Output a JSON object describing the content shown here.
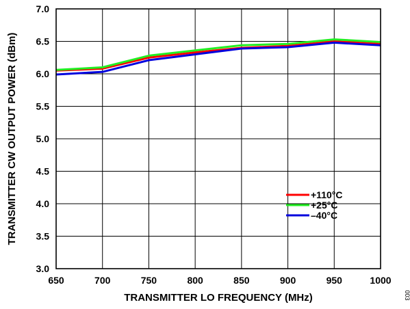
{
  "chart_data": {
    "type": "line",
    "title": "",
    "xlabel": "TRANSMITTER LO FREQUENCY (MHz)",
    "ylabel": "TRANSMITTER CW OUTPUT POWER (dBm)",
    "x": [
      650,
      700,
      750,
      800,
      850,
      900,
      950,
      1000
    ],
    "xlim": [
      650,
      1000
    ],
    "ylim": [
      3.0,
      7.0
    ],
    "x_ticks": [
      650,
      700,
      750,
      800,
      850,
      900,
      950,
      1000
    ],
    "y_ticks": [
      3.0,
      3.5,
      4.0,
      4.5,
      5.0,
      5.5,
      6.0,
      6.5,
      7.0
    ],
    "x_tick_labels": [
      "650",
      "700",
      "750",
      "800",
      "850",
      "900",
      "950",
      "1000"
    ],
    "y_tick_labels": [
      "3.0",
      "3.5",
      "4.0",
      "4.5",
      "5.0",
      "5.5",
      "6.0",
      "6.5",
      "7.0"
    ],
    "grid": true,
    "legend_position": "lower-right",
    "series": [
      {
        "name": "+110°C",
        "color": "#ff0000",
        "values": [
          6.05,
          6.08,
          6.25,
          6.33,
          6.4,
          6.43,
          6.5,
          6.46
        ]
      },
      {
        "name": "+25°C",
        "color": "#22ee22",
        "values": [
          6.06,
          6.1,
          6.28,
          6.36,
          6.44,
          6.46,
          6.53,
          6.49
        ]
      },
      {
        "name": "–40°C",
        "color": "#0000dd",
        "values": [
          5.99,
          6.03,
          6.21,
          6.3,
          6.39,
          6.41,
          6.48,
          6.44
        ]
      }
    ]
  },
  "figure_id": "003"
}
